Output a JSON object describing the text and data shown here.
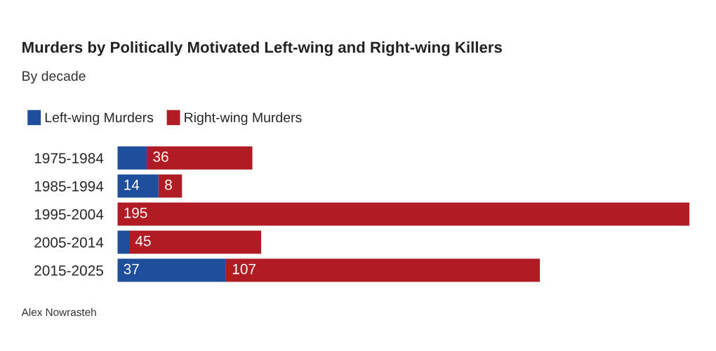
{
  "chart_data": {
    "type": "bar",
    "orientation": "horizontal",
    "stacked": true,
    "title": "Murders by Politically Motivated Left-wing and Right-wing Killers",
    "subtitle": "By decade",
    "categories": [
      "1975-1984",
      "1985-1994",
      "1995-2004",
      "2005-2014",
      "2015-2025"
    ],
    "series": [
      {
        "name": "Left-wing Murders",
        "color": "#1f4e9c",
        "values": [
          10,
          14,
          0,
          4,
          37
        ],
        "value_labels": [
          null,
          "14",
          null,
          null,
          "37"
        ]
      },
      {
        "name": "Right-wing Murders",
        "color": "#b01c24",
        "values": [
          36,
          8,
          195,
          45,
          107
        ],
        "value_labels": [
          "36",
          "8",
          "195",
          "45",
          "107"
        ]
      }
    ],
    "xlim": [
      0,
      195
    ],
    "tick_labels": "y",
    "grid": false,
    "legend": "top left",
    "annotations": [
      "Alex Nowrasteh"
    ]
  }
}
